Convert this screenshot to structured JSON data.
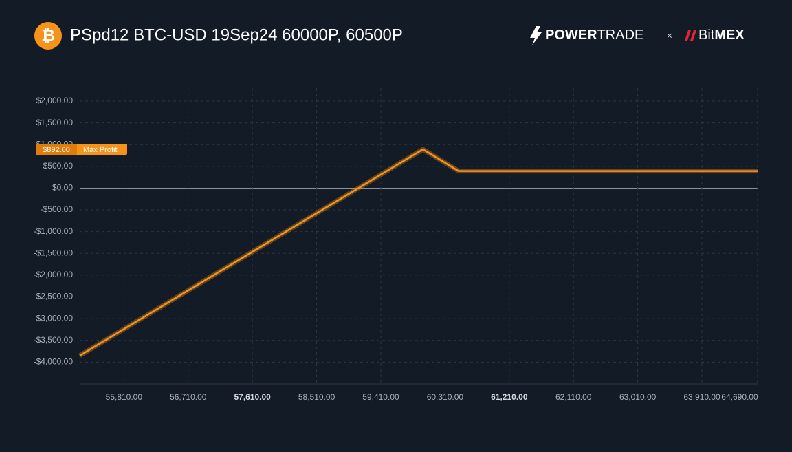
{
  "header": {
    "icon": "₿",
    "title": "PSpd12 BTC-USD 19Sep24 60000P, 60500P",
    "brand1_bold": "POWER",
    "brand1_light": "TRADE",
    "separator": "×",
    "brand2_light": "Bit",
    "brand2_bold": "MEX"
  },
  "chart_data": {
    "type": "line",
    "color": "#f7931a",
    "x": [
      55190,
      60000,
      60500,
      64690
    ],
    "values": [
      -3850,
      892,
      392,
      392
    ],
    "xlim": [
      55190,
      64690
    ],
    "xticks": [
      {
        "value": 55810,
        "label": "55,810.00"
      },
      {
        "value": 56710,
        "label": "56,710.00"
      },
      {
        "value": 57610,
        "label": "57,610.00",
        "bold": true
      },
      {
        "value": 58510,
        "label": "58,510.00"
      },
      {
        "value": 59410,
        "label": "59,410.00"
      },
      {
        "value": 60310,
        "label": "60,310.00"
      },
      {
        "value": 61210,
        "label": "61,210.00",
        "bold": true
      },
      {
        "value": 62110,
        "label": "62,110.00"
      },
      {
        "value": 63010,
        "label": "63,010.00"
      },
      {
        "value": 63910,
        "label": "63,910.00"
      },
      {
        "value": 64690,
        "label": "64,690.00"
      }
    ],
    "ylim": [
      -4500,
      2300
    ],
    "yticks": [
      {
        "value": 2000,
        "label": "$2,000.00"
      },
      {
        "value": 1500,
        "label": "$1,500.00"
      },
      {
        "value": 1000,
        "label": "$1,000.00"
      },
      {
        "value": 500,
        "label": "$500.00"
      },
      {
        "value": 0,
        "label": "$0.00"
      },
      {
        "value": -500,
        "label": "-$500.00"
      },
      {
        "value": -1000,
        "label": "-$1,000.00"
      },
      {
        "value": -1500,
        "label": "-$1,500.00"
      },
      {
        "value": -2000,
        "label": "-$2,000.00"
      },
      {
        "value": -2500,
        "label": "-$2,500.00"
      },
      {
        "value": -3000,
        "label": "-$3,000.00"
      },
      {
        "value": -3500,
        "label": "-$3,500.00"
      },
      {
        "value": -4000,
        "label": "-$4,000.00"
      }
    ],
    "grid": true,
    "annotation": {
      "value": 892,
      "value_label": "$892.00",
      "label": "Max Profit"
    }
  }
}
